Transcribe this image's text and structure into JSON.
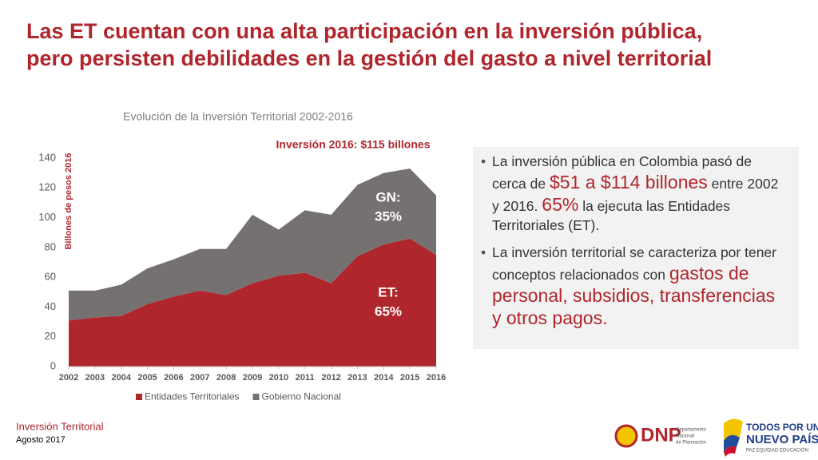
{
  "slide": {
    "title": [
      "Las ET cuentan con una alta participación en la inversión pública,",
      "pero persisten debilidades en la gestión del gasto a nivel territorial"
    ],
    "bullets": [
      [
        {
          "text": "La inversión pública en Colombia pasó de cerca de ",
          "emphasis": false
        },
        {
          "text": "$51 a $114 billones",
          "emphasis": true
        },
        {
          "text": " entre 2002 y 2016. ",
          "emphasis": false
        },
        {
          "text": "65%",
          "emphasis": true
        },
        {
          "text": " la ejecuta las Entidades Territoriales (ET).",
          "emphasis": false
        }
      ],
      [
        {
          "text": "La inversión territorial se caracteriza por tener conceptos relacionados con ",
          "emphasis": false
        },
        {
          "text": "gastos de personal, subsidios, transferencias y otros pagos.",
          "emphasis": true
        }
      ]
    ],
    "footer": {
      "section": "Inversión Territorial",
      "date": "Agosto 2017"
    },
    "logos": {
      "dnp": "DNP",
      "dnp_name": [
        "Departamento",
        "Nacional",
        "de Planeación"
      ],
      "gov": [
        "TODOS POR UN",
        "NUEVO PAÍS"
      ],
      "gov_motto": "PAZ  EQUIDAD  EDUCACIÓN"
    }
  },
  "chart_data": {
    "type": "stacked_area",
    "title": "Evolución de la Inversión Territorial 2002-2016",
    "annotation": "Inversión 2016: $115 billones",
    "y_label": "Billones de pesos 2016",
    "x": [
      2002,
      2003,
      2004,
      2005,
      2006,
      2007,
      2008,
      2009,
      2010,
      2011,
      2012,
      2013,
      2014,
      2015,
      2016
    ],
    "xlim": [
      2002,
      2016
    ],
    "xticks": [
      2002,
      2003,
      2004,
      2005,
      2006,
      2007,
      2008,
      2009,
      2010,
      2011,
      2012,
      2013,
      2014,
      2015,
      2016
    ],
    "ylim": [
      0,
      140
    ],
    "yticks": [
      0,
      20,
      40,
      60,
      80,
      100,
      120,
      140
    ],
    "series": [
      {
        "name": "Entidades Territoriales",
        "color": "#b0262d",
        "values": [
          31,
          33,
          34,
          42,
          47,
          51,
          48,
          56,
          61,
          63,
          56,
          74,
          82,
          86,
          75
        ],
        "area_label": [
          "ET:",
          "65%"
        ]
      },
      {
        "name": "Gobierno Nacional",
        "color": "#767171",
        "values": [
          20,
          18,
          21,
          24,
          25,
          28,
          31,
          46,
          31,
          42,
          46,
          48,
          48,
          47,
          40
        ],
        "area_label": [
          "GN:",
          "35%"
        ]
      }
    ],
    "legend": "bottom"
  }
}
